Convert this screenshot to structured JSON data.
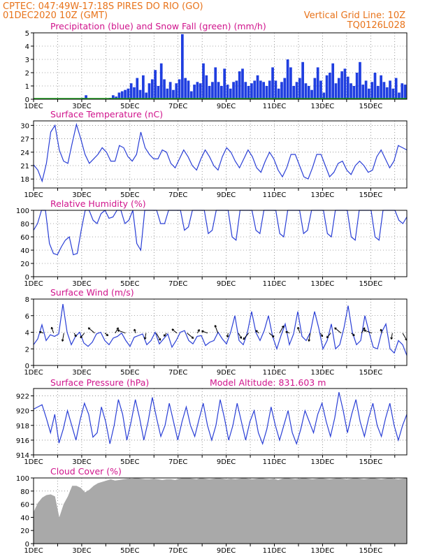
{
  "header": {
    "line1_left": "CPTEC:  047:49W-17:18S  PIRES DO RIO (GO)",
    "line2_left": "01DEC2020 10Z (GMT)",
    "line2_right": "Vertical Grid Line: 10Z",
    "line3_right": "TQ0126L028"
  },
  "x_axis": {
    "tick_labels": [
      "1DEC",
      "3DEC",
      "5DEC",
      "7DEC",
      "9DEC",
      "11DEC",
      "13DEC",
      "15DEC"
    ]
  },
  "panels": {
    "precip": {
      "title": "Precipitation (blue) and Snow Fall (green) (mm/h)",
      "y_ticks": [
        "0",
        "1",
        "2",
        "3",
        "4",
        "5"
      ]
    },
    "temp": {
      "title": "Surface Temperature (nC)",
      "y_ticks": [
        "18",
        "21",
        "24",
        "27",
        "30"
      ]
    },
    "rh": {
      "title": "Relative Humidity (%)",
      "y_ticks": [
        "0",
        "20",
        "40",
        "60",
        "80",
        "100"
      ]
    },
    "wind": {
      "title": "Surface Wind (m/s)",
      "y_ticks": [
        "0",
        "2",
        "4",
        "6",
        "8"
      ]
    },
    "pressure": {
      "title": "Surface Pressure (hPa)",
      "extra": "Model Altitude: 831.603 m",
      "y_ticks": [
        "914",
        "916",
        "918",
        "920",
        "922"
      ]
    },
    "cloud": {
      "title": "Cloud Cover (%)",
      "y_ticks": [
        "0",
        "20",
        "40",
        "60",
        "80",
        "100"
      ]
    }
  },
  "chart_data": [
    {
      "type": "bar",
      "title": "Precipitation (blue) and Snow Fall (green) (mm/h)",
      "xlabel": "",
      "ylabel": "",
      "ylim": [
        0,
        5
      ],
      "x_start": "01DEC2020 10Z",
      "x_step_hours": 3,
      "grid": true,
      "series": [
        {
          "name": "Precipitation",
          "color": "#1f3ee0",
          "values": [
            0,
            0,
            0,
            0,
            0,
            0,
            0,
            0,
            0,
            0,
            0,
            0,
            0,
            0,
            0,
            0,
            0.1,
            0.3,
            0,
            0,
            0,
            0,
            0,
            0,
            0,
            0.1,
            0.3,
            0.2,
            0.5,
            0.6,
            0.7,
            0.8,
            1.2,
            0.9,
            1.6,
            0.7,
            1.8,
            0.5,
            1.2,
            1.5,
            2.2,
            1.0,
            2.7,
            1.5,
            0.8,
            1.3,
            0.7,
            1.2,
            1.5,
            4.9,
            1.6,
            1.4,
            0.6,
            1.1,
            1.3,
            1.2,
            2.7,
            1.8,
            1.0,
            1.3,
            2.4,
            1.3,
            1.0,
            2.3,
            1.1,
            0.8,
            1.3,
            1.4,
            2.1,
            2.3,
            1.3,
            1.0,
            1.2,
            1.4,
            1.8,
            1.4,
            1.3,
            1.0,
            1.4,
            2.4,
            1.4,
            0.8,
            1.3,
            1.6,
            3.0,
            2.4,
            1.0,
            1.3,
            1.6,
            2.8,
            1.2,
            1.0,
            0.7,
            1.6,
            2.4,
            1.4,
            0.5,
            1.8,
            2.0,
            2.7,
            1.2,
            1.6,
            2.1,
            2.3,
            1.7,
            1.2,
            1.0,
            2.0,
            2.8,
            1.1,
            1.4,
            0.8,
            1.3,
            2.0,
            1.0,
            1.8,
            1.3,
            0.9,
            1.4,
            0.8,
            1.6,
            0.5,
            1.2,
            1.1
          ]
        },
        {
          "name": "Snow Fall",
          "color": "#1fa81f",
          "values": []
        }
      ]
    },
    {
      "type": "line",
      "title": "Surface Temperature (nC)",
      "xlabel": "",
      "ylabel": "",
      "ylim": [
        16,
        31
      ],
      "grid": true,
      "series": [
        {
          "name": "Surface Temperature",
          "color": "#2a3fd6",
          "values": [
            21.2,
            20.0,
            17.5,
            21.5,
            28.5,
            30.0,
            24.5,
            22.0,
            21.5,
            26.0,
            30.2,
            27.0,
            23.5,
            21.5,
            22.5,
            23.5,
            25.0,
            24.0,
            22.0,
            22.0,
            25.5,
            25.0,
            23.0,
            22.0,
            23.5,
            28.5,
            25.0,
            23.5,
            22.5,
            22.5,
            24.5,
            24.0,
            21.5,
            20.5,
            22.5,
            24.5,
            23.0,
            21.0,
            20.0,
            22.5,
            24.5,
            23.0,
            21.0,
            20.0,
            23.0,
            25.0,
            24.0,
            22.0,
            20.5,
            22.5,
            24.5,
            23.0,
            20.5,
            19.5,
            22.0,
            24.0,
            22.5,
            20.0,
            18.5,
            20.5,
            23.5,
            23.5,
            21.0,
            18.5,
            18.0,
            20.5,
            23.5,
            23.5,
            21.0,
            18.5,
            19.5,
            21.5,
            22.0,
            20.0,
            19.0,
            21.0,
            22.0,
            21.0,
            19.5,
            20.0,
            23.0,
            24.5,
            22.5,
            20.5,
            22.0,
            25.5,
            25.0,
            24.5
          ]
        }
      ]
    },
    {
      "type": "line",
      "title": "Relative Humidity (%)",
      "ylim": [
        0,
        100
      ],
      "grid": true,
      "series": [
        {
          "name": "Relative Humidity",
          "color": "#2a3fd6",
          "values": [
            70,
            80,
            100,
            100,
            50,
            35,
            33,
            45,
            55,
            60,
            33,
            35,
            70,
            100,
            100,
            85,
            80,
            95,
            100,
            88,
            90,
            100,
            100,
            80,
            85,
            100,
            50,
            40,
            100,
            100,
            100,
            100,
            80,
            80,
            100,
            100,
            100,
            100,
            70,
            75,
            100,
            100,
            100,
            100,
            65,
            70,
            100,
            100,
            100,
            100,
            60,
            55,
            100,
            100,
            100,
            100,
            70,
            65,
            100,
            100,
            100,
            100,
            65,
            60,
            100,
            100,
            100,
            100,
            65,
            70,
            100,
            100,
            100,
            100,
            65,
            60,
            100,
            100,
            100,
            100,
            60,
            55,
            100,
            100,
            100,
            100,
            60,
            55,
            100,
            100,
            100,
            100,
            85,
            80,
            90
          ]
        }
      ]
    },
    {
      "type": "line",
      "title": "Surface Wind (m/s)",
      "ylim": [
        0,
        8
      ],
      "grid": true,
      "series": [
        {
          "name": "Surface Wind",
          "color": "#2a3fd6",
          "values": [
            2.5,
            3.2,
            4.9,
            3.0,
            3.7,
            3.5,
            3.8,
            7.4,
            4.0,
            2.5,
            3.5,
            4.0,
            2.7,
            2.3,
            2.8,
            3.8,
            4.0,
            3.0,
            2.5,
            3.3,
            3.5,
            3.9,
            3.0,
            2.3,
            3.4,
            3.6,
            3.8,
            2.5,
            3.0,
            4.0,
            2.6,
            3.2,
            3.8,
            2.2,
            3.0,
            4.0,
            4.2,
            3.0,
            2.6,
            3.5,
            3.6,
            2.4,
            2.8,
            3.0,
            4.0,
            3.2,
            2.6,
            4.0,
            6.0,
            3.0,
            2.5,
            4.0,
            6.5,
            4.0,
            3.0,
            4.2,
            6.0,
            3.5,
            2.0,
            3.6,
            5.0,
            2.5,
            3.8,
            6.5,
            3.5,
            3.0,
            4.0,
            6.5,
            4.5,
            2.0,
            3.0,
            5.0,
            2.0,
            2.5,
            4.5,
            7.2,
            4.0,
            2.5,
            3.0,
            6.0,
            4.0,
            2.2,
            2.0,
            4.0,
            5.0,
            2.0,
            1.5,
            3.0,
            2.5,
            1.2
          ]
        }
      ],
      "arrows_shown": true
    },
    {
      "type": "line",
      "title": "Surface Pressure (hPa)",
      "ylim": [
        914,
        923
      ],
      "grid": true,
      "annotation": "Model Altitude: 831.603 m",
      "series": [
        {
          "name": "Surface Pressure",
          "color": "#2a3fd6",
          "values": [
            920.2,
            920.5,
            920.8,
            919.0,
            917.0,
            919.5,
            915.6,
            917.5,
            920.0,
            918.0,
            916.0,
            918.8,
            921.0,
            919.5,
            916.4,
            917.0,
            920.5,
            918.5,
            915.5,
            918.0,
            921.5,
            919.5,
            916.0,
            918.5,
            921.5,
            919.0,
            916.0,
            918.5,
            921.8,
            919.0,
            916.5,
            918.0,
            921.0,
            918.5,
            916.0,
            918.5,
            920.5,
            918.0,
            916.5,
            918.8,
            921.0,
            918.0,
            916.0,
            918.0,
            921.5,
            919.0,
            916.0,
            918.0,
            921.0,
            918.5,
            916.0,
            918.5,
            920.0,
            917.0,
            915.5,
            917.5,
            920.5,
            918.0,
            916.0,
            918.0,
            920.0,
            917.0,
            915.5,
            917.5,
            920.0,
            918.5,
            917.0,
            919.5,
            921.0,
            918.5,
            916.5,
            919.0,
            922.5,
            920.0,
            917.0,
            919.5,
            921.5,
            918.5,
            916.5,
            919.0,
            921.0,
            918.0,
            916.5,
            919.0,
            921.0,
            918.0,
            916.0,
            918.0,
            919.5
          ]
        }
      ]
    },
    {
      "type": "area",
      "title": "Cloud Cover (%)",
      "ylim": [
        0,
        100
      ],
      "grid": true,
      "series": [
        {
          "name": "Cloud Cover",
          "color": "#a9a9a9",
          "values": [
            48,
            62,
            70,
            74,
            75,
            72,
            40,
            60,
            72,
            88,
            88,
            85,
            78,
            82,
            88,
            92,
            94,
            96,
            98,
            96,
            97,
            98,
            99,
            99,
            100,
            99,
            98,
            98,
            99,
            98,
            97,
            98,
            98,
            97,
            99,
            100,
            100,
            99,
            98,
            100,
            99,
            98,
            99,
            100,
            99,
            98,
            99,
            98,
            99,
            100,
            99,
            98,
            99,
            100,
            99,
            98,
            99,
            97,
            99,
            100,
            99,
            98,
            99,
            100,
            99,
            98,
            99,
            100,
            99,
            98,
            99,
            100,
            99,
            98,
            99,
            100,
            99,
            98,
            99,
            100,
            99,
            98,
            99,
            100,
            99,
            98,
            99,
            100
          ]
        }
      ]
    }
  ]
}
